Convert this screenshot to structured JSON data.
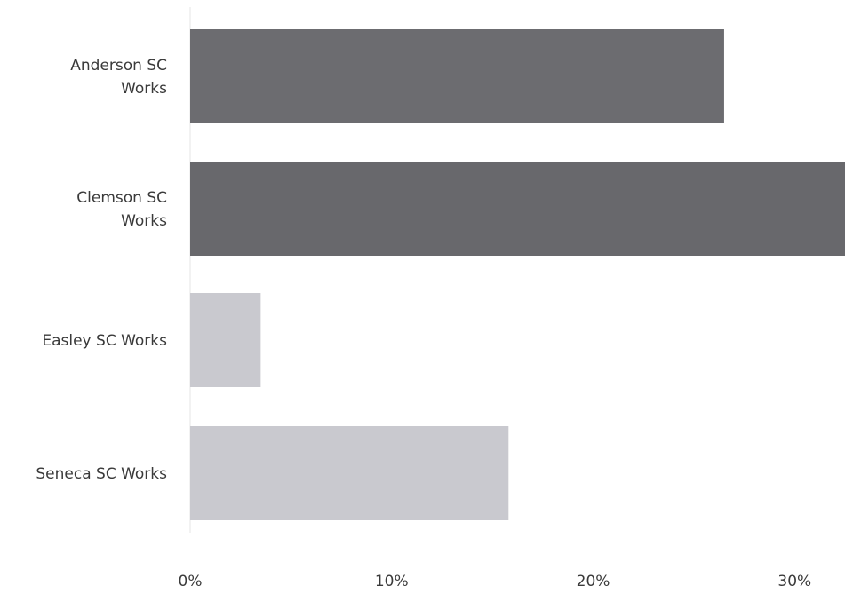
{
  "chart_data": {
    "type": "bar",
    "orientation": "horizontal",
    "categories": [
      "Anderson SC Works",
      "Clemson SC Works",
      "Easley SC Works",
      "Seneca SC Works"
    ],
    "category_label_lines": [
      [
        "Anderson SC",
        "Works"
      ],
      [
        "Clemson SC",
        "Works"
      ],
      [
        "Easley SC Works"
      ],
      [
        "Seneca SC Works"
      ]
    ],
    "values": [
      26.5,
      32.5,
      3.5,
      15.8
    ],
    "bar_colors": [
      "#6c6c70",
      "#68686c",
      "#c9c9cf",
      "#c9c9cf"
    ],
    "xlim": [
      0,
      32.5
    ],
    "x_ticks": [
      0,
      10,
      20,
      30
    ],
    "x_tick_labels": [
      "0%",
      "10%",
      "20%",
      "30%"
    ],
    "title": "",
    "xlabel": "",
    "ylabel": "",
    "grid": false,
    "legend": "none"
  }
}
